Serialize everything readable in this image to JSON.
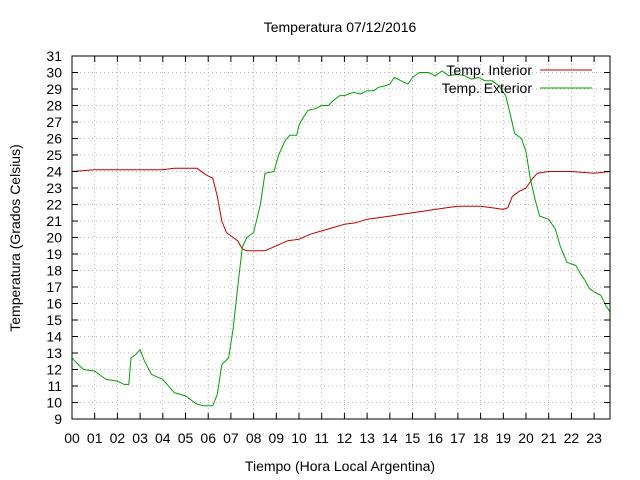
{
  "chart_data": {
    "type": "line",
    "title": "Temperatura 07/12/2016",
    "xlabel": "Tiempo (Hora Local Argentina)",
    "ylabel": "Temperatura (Grados Celsius)",
    "xlim": [
      0,
      23.7
    ],
    "ylim": [
      9,
      31
    ],
    "x_ticks": [
      "00",
      "01",
      "02",
      "03",
      "04",
      "05",
      "06",
      "07",
      "08",
      "09",
      "10",
      "11",
      "12",
      "13",
      "14",
      "15",
      "16",
      "17",
      "18",
      "19",
      "20",
      "21",
      "22",
      "23"
    ],
    "y_ticks": [
      9,
      10,
      11,
      12,
      13,
      14,
      15,
      16,
      17,
      18,
      19,
      20,
      21,
      22,
      23,
      24,
      25,
      26,
      27,
      28,
      29,
      30,
      31
    ],
    "grid": true,
    "legend_position": "top-right",
    "series": [
      {
        "name": "Temp. Interior",
        "color": "#c00000",
        "points": [
          [
            0,
            24.0
          ],
          [
            1,
            24.1
          ],
          [
            2,
            24.1
          ],
          [
            3,
            24.1
          ],
          [
            4,
            24.1
          ],
          [
            4.5,
            24.2
          ],
          [
            5.5,
            24.2
          ],
          [
            5.9,
            23.8
          ],
          [
            6.2,
            23.6
          ],
          [
            6.4,
            22.5
          ],
          [
            6.6,
            21.0
          ],
          [
            6.8,
            20.3
          ],
          [
            7.1,
            20.0
          ],
          [
            7.3,
            19.8
          ],
          [
            7.5,
            19.3
          ],
          [
            7.7,
            19.2
          ],
          [
            8.5,
            19.2
          ],
          [
            9.0,
            19.5
          ],
          [
            9.5,
            19.8
          ],
          [
            10.0,
            19.9
          ],
          [
            10.5,
            20.2
          ],
          [
            11.0,
            20.4
          ],
          [
            11.5,
            20.6
          ],
          [
            12.0,
            20.8
          ],
          [
            12.5,
            20.9
          ],
          [
            13.0,
            21.1
          ],
          [
            13.5,
            21.2
          ],
          [
            14.0,
            21.3
          ],
          [
            14.5,
            21.4
          ],
          [
            15.0,
            21.5
          ],
          [
            15.5,
            21.6
          ],
          [
            16.0,
            21.7
          ],
          [
            16.5,
            21.8
          ],
          [
            17.0,
            21.9
          ],
          [
            17.5,
            21.9
          ],
          [
            18.0,
            21.9
          ],
          [
            18.5,
            21.8
          ],
          [
            19.0,
            21.7
          ],
          [
            19.2,
            21.8
          ],
          [
            19.4,
            22.5
          ],
          [
            19.7,
            22.8
          ],
          [
            20.0,
            23.0
          ],
          [
            20.3,
            23.6
          ],
          [
            20.5,
            23.9
          ],
          [
            21.0,
            24.0
          ],
          [
            22.0,
            24.0
          ],
          [
            23.0,
            23.9
          ],
          [
            23.7,
            24.0
          ]
        ]
      },
      {
        "name": "Temp. Exterior",
        "color": "#00a000",
        "points": [
          [
            0,
            12.7
          ],
          [
            0.2,
            12.4
          ],
          [
            0.5,
            12.0
          ],
          [
            1.0,
            11.9
          ],
          [
            1.5,
            11.4
          ],
          [
            2.0,
            11.3
          ],
          [
            2.3,
            11.1
          ],
          [
            2.5,
            11.1
          ],
          [
            2.6,
            12.7
          ],
          [
            2.8,
            12.9
          ],
          [
            3.0,
            13.2
          ],
          [
            3.2,
            12.5
          ],
          [
            3.5,
            11.7
          ],
          [
            4.0,
            11.4
          ],
          [
            4.5,
            10.6
          ],
          [
            5.0,
            10.4
          ],
          [
            5.3,
            10.1
          ],
          [
            5.5,
            9.9
          ],
          [
            5.8,
            9.8
          ],
          [
            6.2,
            9.8
          ],
          [
            6.4,
            10.5
          ],
          [
            6.6,
            12.3
          ],
          [
            6.9,
            12.7
          ],
          [
            7.1,
            14.5
          ],
          [
            7.3,
            17.0
          ],
          [
            7.5,
            19.4
          ],
          [
            7.7,
            20.0
          ],
          [
            8.0,
            20.3
          ],
          [
            8.3,
            22.0
          ],
          [
            8.5,
            23.9
          ],
          [
            8.9,
            24.0
          ],
          [
            9.1,
            25.0
          ],
          [
            9.4,
            25.9
          ],
          [
            9.6,
            26.2
          ],
          [
            9.9,
            26.2
          ],
          [
            10.0,
            26.8
          ],
          [
            10.2,
            27.3
          ],
          [
            10.4,
            27.7
          ],
          [
            10.7,
            27.8
          ],
          [
            11.0,
            28.0
          ],
          [
            11.3,
            28.0
          ],
          [
            11.5,
            28.3
          ],
          [
            11.8,
            28.6
          ],
          [
            12.0,
            28.6
          ],
          [
            12.4,
            28.8
          ],
          [
            12.7,
            28.7
          ],
          [
            13.0,
            28.9
          ],
          [
            13.3,
            28.9
          ],
          [
            13.5,
            29.1
          ],
          [
            13.8,
            29.2
          ],
          [
            14.0,
            29.3
          ],
          [
            14.2,
            29.7
          ],
          [
            14.5,
            29.5
          ],
          [
            14.8,
            29.3
          ],
          [
            15.0,
            29.7
          ],
          [
            15.3,
            30.0
          ],
          [
            15.7,
            30.0
          ],
          [
            16.0,
            29.8
          ],
          [
            16.3,
            30.1
          ],
          [
            16.6,
            29.8
          ],
          [
            17.0,
            29.9
          ],
          [
            17.3,
            29.8
          ],
          [
            17.6,
            29.6
          ],
          [
            17.9,
            29.7
          ],
          [
            18.2,
            29.5
          ],
          [
            18.5,
            29.5
          ],
          [
            18.8,
            29.2
          ],
          [
            19.1,
            28.6
          ],
          [
            19.3,
            27.5
          ],
          [
            19.5,
            26.3
          ],
          [
            19.8,
            26.0
          ],
          [
            20.0,
            25.2
          ],
          [
            20.2,
            23.5
          ],
          [
            20.4,
            22.3
          ],
          [
            20.6,
            21.3
          ],
          [
            21.0,
            21.1
          ],
          [
            21.3,
            20.5
          ],
          [
            21.5,
            19.5
          ],
          [
            21.8,
            18.5
          ],
          [
            22.2,
            18.3
          ],
          [
            22.4,
            17.8
          ],
          [
            22.6,
            17.4
          ],
          [
            22.8,
            16.9
          ],
          [
            23.0,
            16.7
          ],
          [
            23.3,
            16.5
          ],
          [
            23.5,
            15.9
          ],
          [
            23.7,
            15.5
          ]
        ]
      }
    ]
  }
}
